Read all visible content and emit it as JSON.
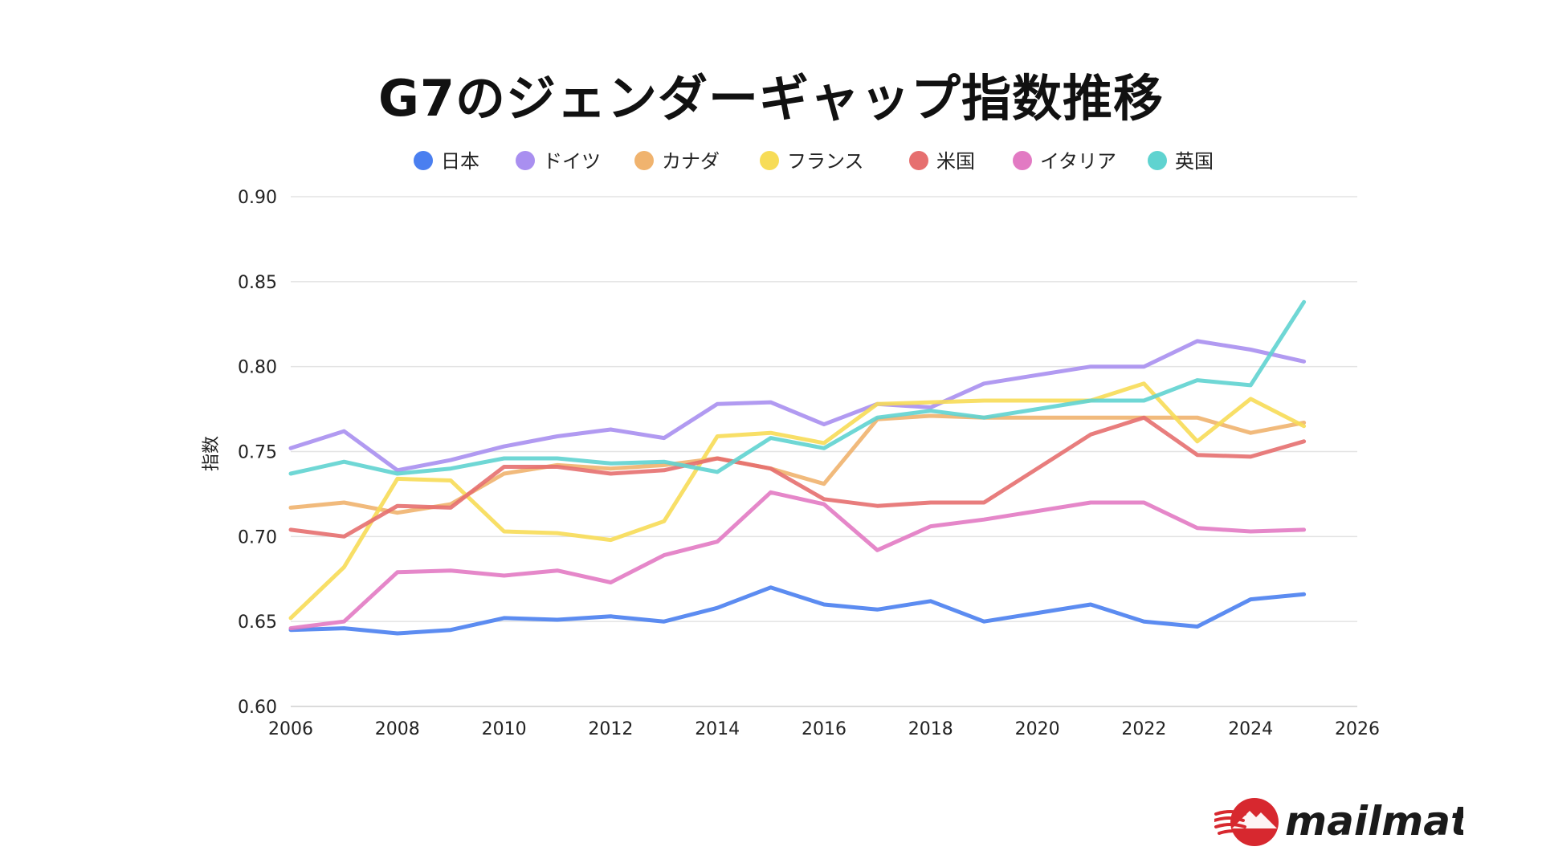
{
  "chart_data": {
    "type": "line",
    "title": "G7のジェンダーギャップ指数推移",
    "xlabel": "",
    "ylabel": "指数",
    "xlim": [
      2006,
      2026
    ],
    "ylim": [
      0.6,
      0.9
    ],
    "x_ticks": [
      "2006",
      "2008",
      "2010",
      "2012",
      "2014",
      "2016",
      "2018",
      "2020",
      "2022",
      "2024",
      "2026"
    ],
    "y_ticks": [
      "0.60",
      "0.65",
      "0.70",
      "0.75",
      "0.80",
      "0.85",
      "0.90"
    ],
    "grid": true,
    "legend_position": "top",
    "x": [
      2006,
      2007,
      2008,
      2009,
      2010,
      2011,
      2012,
      2013,
      2014,
      2015,
      2016,
      2017,
      2018,
      2019,
      2020,
      2021,
      2022,
      2023,
      2024,
      2025
    ],
    "series": [
      {
        "name": "日本",
        "color": "#4a7ff0",
        "values": [
          0.645,
          0.646,
          0.643,
          0.645,
          0.652,
          0.651,
          0.653,
          0.65,
          0.658,
          0.67,
          0.66,
          0.657,
          0.662,
          0.65,
          0.655,
          0.66,
          0.65,
          0.647,
          0.663,
          0.666
        ]
      },
      {
        "name": "ドイツ",
        "color": "#a98ff0",
        "values": [
          0.752,
          0.762,
          0.739,
          0.745,
          0.753,
          0.759,
          0.763,
          0.758,
          0.778,
          0.779,
          0.766,
          0.778,
          0.776,
          0.79,
          0.795,
          0.8,
          0.8,
          0.815,
          0.81,
          0.803
        ]
      },
      {
        "name": "カナダ",
        "color": "#f0b36e",
        "values": [
          0.717,
          0.72,
          0.714,
          0.719,
          0.737,
          0.742,
          0.74,
          0.742,
          0.746,
          0.74,
          0.731,
          0.769,
          0.771,
          0.77,
          0.77,
          0.77,
          0.77,
          0.77,
          0.761,
          0.767
        ]
      },
      {
        "name": "フランス",
        "color": "#f7dc57",
        "values": [
          0.652,
          0.682,
          0.734,
          0.733,
          0.703,
          0.702,
          0.698,
          0.709,
          0.759,
          0.761,
          0.755,
          0.778,
          0.779,
          0.78,
          0.78,
          0.78,
          0.79,
          0.756,
          0.781,
          0.765
        ]
      },
      {
        "name": "米国",
        "color": "#e66f6f",
        "values": [
          0.704,
          0.7,
          0.718,
          0.717,
          0.741,
          0.741,
          0.737,
          0.739,
          0.746,
          0.74,
          0.722,
          0.718,
          0.72,
          0.72,
          0.74,
          0.76,
          0.77,
          0.748,
          0.747,
          0.756
        ]
      },
      {
        "name": "イタリア",
        "color": "#e27ac3",
        "values": [
          0.646,
          0.65,
          0.679,
          0.68,
          0.677,
          0.68,
          0.673,
          0.689,
          0.697,
          0.726,
          0.719,
          0.692,
          0.706,
          0.71,
          0.715,
          0.72,
          0.72,
          0.705,
          0.703,
          0.704
        ]
      },
      {
        "name": "英国",
        "color": "#5fd3d0",
        "values": [
          0.737,
          0.744,
          0.737,
          0.74,
          0.746,
          0.746,
          0.743,
          0.744,
          0.738,
          0.758,
          0.752,
          0.77,
          0.774,
          0.77,
          0.775,
          0.78,
          0.78,
          0.792,
          0.789,
          0.838
        ]
      }
    ]
  },
  "logo": {
    "text": "mailmate",
    "colors": {
      "mark": "#d7282f",
      "text": "#1a1a1a"
    }
  }
}
